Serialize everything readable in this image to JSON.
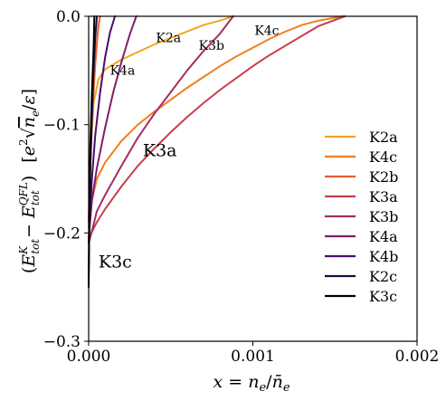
{
  "chart_data": {
    "type": "line",
    "xlabel": "x = n_e/n̄_e",
    "ylabel": "(E_tot^K − E_tot^QFL)  [e²√n_e/ε]",
    "xlim": [
      0.0,
      0.002
    ],
    "ylim": [
      -0.3,
      0.0
    ],
    "xticks": [
      "0.000",
      "0.001",
      "0.002"
    ],
    "yticks": [
      "0.0",
      "−0.1",
      "−0.2",
      "−0.3"
    ],
    "legend_position": "lower-right",
    "series": [
      {
        "name": "K2a",
        "color": "#f5a31f",
        "points": [
          [
            0.0,
            -0.19
          ],
          [
            1e-05,
            -0.13
          ],
          [
            3e-05,
            -0.08
          ],
          [
            6e-05,
            -0.058
          ],
          [
            0.0001,
            -0.049
          ],
          [
            0.0002,
            -0.04
          ],
          [
            0.0003,
            -0.033
          ],
          [
            0.0004,
            -0.026
          ],
          [
            0.0005,
            -0.02
          ],
          [
            0.0006,
            -0.014
          ],
          [
            0.0007,
            -0.008
          ],
          [
            0.0008,
            -0.004
          ],
          [
            0.00088,
            0.0
          ]
        ]
      },
      {
        "name": "K4c",
        "color": "#f07f1c",
        "points": [
          [
            0.0,
            -0.195
          ],
          [
            2e-05,
            -0.17
          ],
          [
            5e-05,
            -0.15
          ],
          [
            0.0001,
            -0.135
          ],
          [
            0.0002,
            -0.115
          ],
          [
            0.0003,
            -0.1
          ],
          [
            0.0004,
            -0.088
          ],
          [
            0.0005,
            -0.077
          ],
          [
            0.0006,
            -0.066
          ],
          [
            0.0007,
            -0.056
          ],
          [
            0.0008,
            -0.046
          ],
          [
            0.0009,
            -0.037
          ],
          [
            0.001,
            -0.029
          ],
          [
            0.0011,
            -0.021
          ],
          [
            0.0012,
            -0.014
          ],
          [
            0.0013,
            -0.008
          ],
          [
            0.0014,
            -0.004
          ],
          [
            0.00155,
            0.0
          ]
        ]
      },
      {
        "name": "K2b",
        "color": "#e55c30",
        "points": [
          [
            0.0,
            -0.19
          ],
          [
            1e-05,
            -0.14
          ],
          [
            2e-05,
            -0.1
          ],
          [
            3e-05,
            -0.07
          ],
          [
            4e-05,
            -0.045
          ],
          [
            5e-05,
            -0.025
          ],
          [
            6e-05,
            -0.008
          ],
          [
            7e-05,
            0.0
          ]
        ]
      },
      {
        "name": "K3a",
        "color": "#c73e4c",
        "points": [
          [
            0.0,
            -0.205
          ],
          [
            5e-05,
            -0.19
          ],
          [
            0.0001,
            -0.178
          ],
          [
            0.0002,
            -0.157
          ],
          [
            0.0003,
            -0.138
          ],
          [
            0.0004,
            -0.122
          ],
          [
            0.0005,
            -0.107
          ],
          [
            0.0006,
            -0.093
          ],
          [
            0.0007,
            -0.08
          ],
          [
            0.0008,
            -0.068
          ],
          [
            0.0009,
            -0.057
          ],
          [
            0.001,
            -0.046
          ],
          [
            0.0011,
            -0.036
          ],
          [
            0.0012,
            -0.027
          ],
          [
            0.0013,
            -0.018
          ],
          [
            0.0014,
            -0.009
          ],
          [
            0.00156,
            0.0
          ]
        ]
      },
      {
        "name": "K3b",
        "color": "#a52c60",
        "points": [
          [
            0.0,
            -0.21
          ],
          [
            5e-05,
            -0.18
          ],
          [
            0.0001,
            -0.165
          ],
          [
            0.0002,
            -0.138
          ],
          [
            0.0003,
            -0.112
          ],
          [
            0.0004,
            -0.09
          ],
          [
            0.0005,
            -0.07
          ],
          [
            0.0006,
            -0.05
          ],
          [
            0.0007,
            -0.032
          ],
          [
            0.0008,
            -0.016
          ],
          [
            0.00088,
            0.0
          ]
        ]
      },
      {
        "name": "K4a",
        "color": "#7e1e6c",
        "points": [
          [
            0.0,
            -0.205
          ],
          [
            2e-05,
            -0.17
          ],
          [
            5e-05,
            -0.14
          ],
          [
            0.0001,
            -0.103
          ],
          [
            0.00015,
            -0.07
          ],
          [
            0.0002,
            -0.042
          ],
          [
            0.00025,
            -0.017
          ],
          [
            0.00029,
            0.0
          ]
        ]
      },
      {
        "name": "K4b",
        "color": "#4a0c6b",
        "points": [
          [
            0.0,
            -0.21
          ],
          [
            2e-05,
            -0.15
          ],
          [
            4e-05,
            -0.11
          ],
          [
            7e-05,
            -0.07
          ],
          [
            0.0001,
            -0.038
          ],
          [
            0.00013,
            -0.015
          ],
          [
            0.00016,
            0.0
          ]
        ]
      },
      {
        "name": "K2c",
        "color": "#1b0c41",
        "points": [
          [
            0.0,
            -0.24
          ],
          [
            5e-06,
            -0.18
          ],
          [
            1e-05,
            -0.14
          ],
          [
            2e-05,
            -0.09
          ],
          [
            3e-05,
            -0.05
          ],
          [
            4e-05,
            -0.02
          ],
          [
            5e-05,
            0.0
          ]
        ]
      },
      {
        "name": "K3c",
        "color": "#000004",
        "points": [
          [
            0.0,
            -0.25
          ],
          [
            5e-06,
            -0.17
          ],
          [
            1e-05,
            -0.12
          ],
          [
            2e-05,
            -0.07
          ],
          [
            3e-05,
            -0.03
          ],
          [
            3.5e-05,
            0.0
          ]
        ]
      }
    ],
    "annotations": [
      {
        "text": "K2a",
        "x": 0.00041,
        "y": -0.024,
        "size": 14
      },
      {
        "text": "K3b",
        "x": 0.00067,
        "y": -0.031,
        "size": 14
      },
      {
        "text": "K4c",
        "x": 0.00101,
        "y": -0.017,
        "size": 14
      },
      {
        "text": "K4a",
        "x": 0.00013,
        "y": -0.054,
        "size": 14
      },
      {
        "text": "K3a",
        "x": 0.00033,
        "y": -0.129,
        "size": 19
      },
      {
        "text": "K3c",
        "x": 6e-05,
        "y": -0.232,
        "size": 19
      }
    ]
  }
}
